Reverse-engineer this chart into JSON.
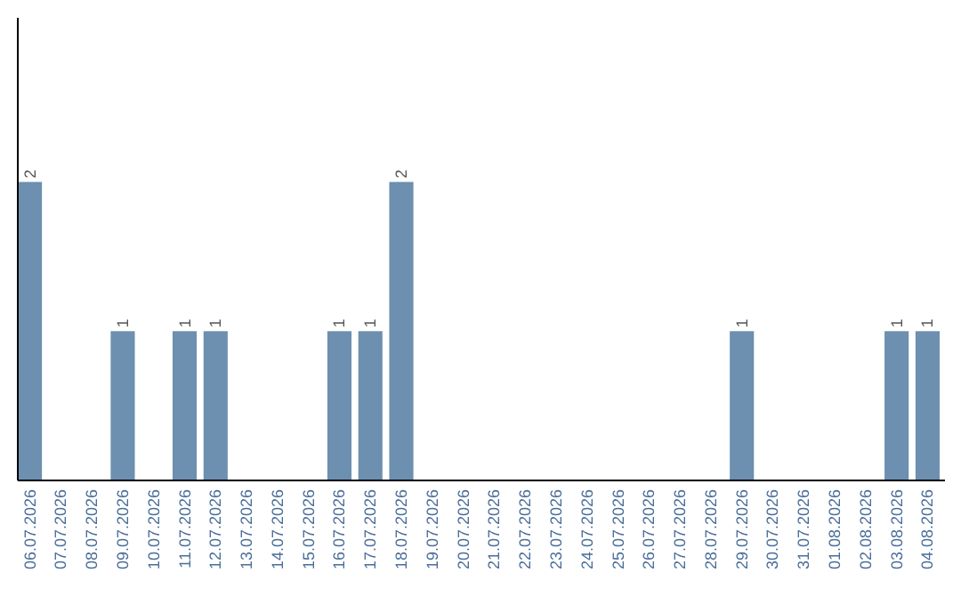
{
  "chart_data": {
    "type": "bar",
    "categories": [
      "06.07.2026",
      "07.07.2026",
      "08.07.2026",
      "09.07.2026",
      "10.07.2026",
      "11.07.2026",
      "12.07.2026",
      "13.07.2026",
      "14.07.2026",
      "15.07.2026",
      "16.07.2026",
      "17.07.2026",
      "18.07.2026",
      "19.07.2026",
      "20.07.2026",
      "21.07.2026",
      "22.07.2026",
      "23.07.2026",
      "24.07.2026",
      "25.07.2026",
      "26.07.2026",
      "27.07.2026",
      "28.07.2026",
      "29.07.2026",
      "30.07.2026",
      "31.07.2026",
      "01.08.2026",
      "02.08.2026",
      "03.08.2026",
      "04.08.2026"
    ],
    "values": [
      2,
      0,
      0,
      1,
      0,
      1,
      1,
      0,
      0,
      0,
      1,
      1,
      2,
      0,
      0,
      0,
      0,
      0,
      0,
      0,
      0,
      0,
      0,
      1,
      0,
      0,
      0,
      0,
      1,
      1
    ],
    "value_labels": [
      "2",
      null,
      null,
      "1",
      null,
      "1",
      "1",
      null,
      null,
      null,
      "1",
      "1",
      "2",
      null,
      null,
      null,
      null,
      null,
      null,
      null,
      null,
      null,
      null,
      "1",
      null,
      null,
      null,
      null,
      "1",
      "1"
    ],
    "color": "#6d8fb0",
    "ylim": [
      0,
      3.1
    ],
    "tick_labels": "x"
  }
}
